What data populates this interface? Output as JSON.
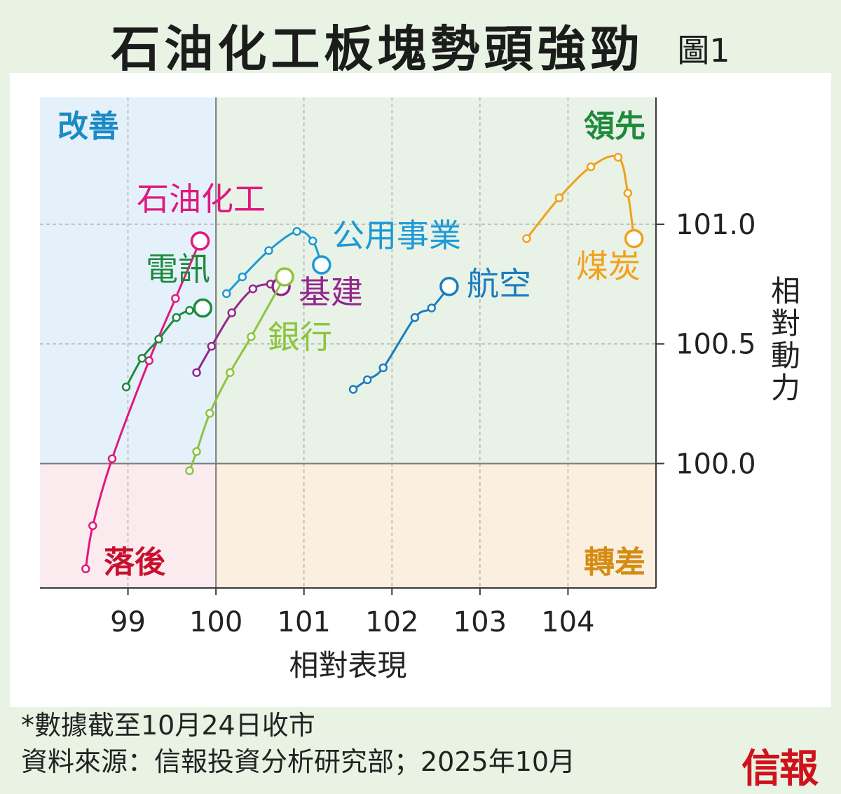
{
  "title": "石油化工板塊勢頭強勁",
  "figure_label": "圖1",
  "footnote": "*數據截至10月24日收市",
  "source": "資料來源：信報投資分析研究部；2025年10月",
  "logo": "信報",
  "colors": {
    "improving_bg": "#e4f1fa",
    "leading_bg": "#e9f2e6",
    "lagging_bg": "#fbebee",
    "weakening_bg": "#fbefdf",
    "improving_label": "#1b8bc4",
    "leading_label": "#1e8a3c",
    "lagging_label": "#c8102e",
    "weakening_label": "#d48c12"
  },
  "chart_data": {
    "type": "scatter",
    "xlabel": "相對表現",
    "ylabel": "相對動力",
    "xlim": [
      98.0,
      105.0
    ],
    "ylim": [
      99.48,
      101.53
    ],
    "x_ticks": [
      99,
      100,
      101,
      102,
      103,
      104
    ],
    "x_tick_labels": [
      "99",
      "100",
      "101",
      "102",
      "103",
      "104"
    ],
    "y_ticks": [
      100.0,
      100.5,
      101.0
    ],
    "y_tick_labels": [
      "100.0",
      "100.5",
      "101.0"
    ],
    "grid": true,
    "quadrant_center": [
      100,
      100
    ],
    "quadrants": [
      {
        "key": "improving",
        "label": "改善"
      },
      {
        "key": "leading",
        "label": "領先"
      },
      {
        "key": "lagging",
        "label": "落後"
      },
      {
        "key": "weakening",
        "label": "轉差"
      }
    ],
    "series": [
      {
        "name": "石油化工",
        "color": "#e0197d",
        "points": [
          [
            98.52,
            99.56
          ],
          [
            98.6,
            99.74
          ],
          [
            98.82,
            100.02
          ],
          [
            99.24,
            100.43
          ],
          [
            99.54,
            100.69
          ],
          [
            99.82,
            100.93
          ]
        ]
      },
      {
        "name": "電訊",
        "color": "#1e8a3c",
        "points": [
          [
            98.98,
            100.32
          ],
          [
            99.16,
            100.44
          ],
          [
            99.35,
            100.52
          ],
          [
            99.55,
            100.61
          ],
          [
            99.7,
            100.64
          ],
          [
            99.85,
            100.65
          ]
        ]
      },
      {
        "name": "公用事業",
        "color": "#1b9ad6",
        "points": [
          [
            100.12,
            100.71
          ],
          [
            100.3,
            100.78
          ],
          [
            100.6,
            100.89
          ],
          [
            100.92,
            100.97
          ],
          [
            101.1,
            100.93
          ],
          [
            101.2,
            100.83
          ]
        ]
      },
      {
        "name": "基建",
        "color": "#93268f",
        "points": [
          [
            99.78,
            100.38
          ],
          [
            99.95,
            100.49
          ],
          [
            100.18,
            100.63
          ],
          [
            100.42,
            100.73
          ],
          [
            100.62,
            100.75
          ],
          [
            100.74,
            100.74
          ]
        ]
      },
      {
        "name": "銀行",
        "color": "#8cc43f",
        "points": [
          [
            99.7,
            99.97
          ],
          [
            99.78,
            100.05
          ],
          [
            99.93,
            100.21
          ],
          [
            100.16,
            100.38
          ],
          [
            100.4,
            100.53
          ],
          [
            100.78,
            100.78
          ]
        ]
      },
      {
        "name": "航空",
        "color": "#1a7dbf",
        "points": [
          [
            101.56,
            100.31
          ],
          [
            101.72,
            100.35
          ],
          [
            101.9,
            100.4
          ],
          [
            102.26,
            100.61
          ],
          [
            102.45,
            100.65
          ],
          [
            102.65,
            100.74
          ]
        ]
      },
      {
        "name": "煤炭",
        "color": "#f0a11b",
        "points": [
          [
            103.53,
            100.94
          ],
          [
            103.9,
            101.11
          ],
          [
            104.26,
            101.24
          ],
          [
            104.57,
            101.28
          ],
          [
            104.68,
            101.13
          ],
          [
            104.75,
            100.94
          ]
        ]
      }
    ]
  }
}
